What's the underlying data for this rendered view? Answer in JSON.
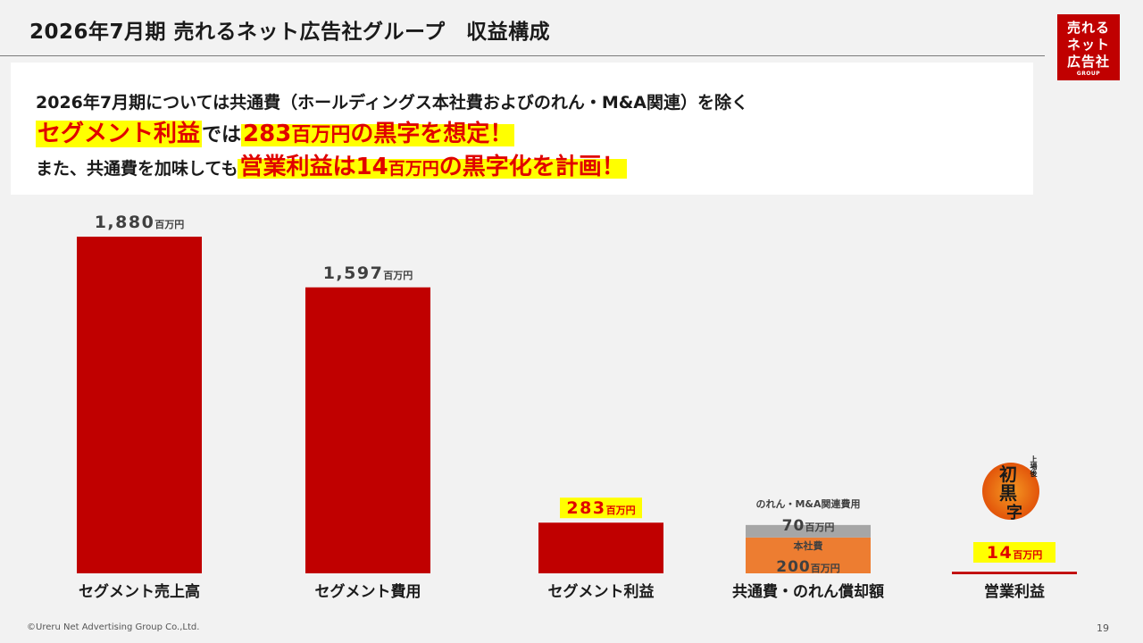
{
  "title": "2026年7月期 売れるネット広告社グループ　収益構成",
  "logo": {
    "line1": "売れる",
    "line2": "ネット",
    "line3": "広告社",
    "line4": "GROUP"
  },
  "summary": {
    "line1": "2026年7月期については共通費（ホールディングス本社費およびのれん・M&A関連）を除く",
    "line2_hl1": "セグメント利益",
    "line2_mid": "では",
    "line2_hl2_num": "283",
    "line2_hl2_unit": "百万円",
    "line2_hl2_rest": "の黒字を想定！",
    "line3_pre": "また、共通費を加味しても",
    "line3_hl_a": "営業利益は",
    "line3_hl_num": "14",
    "line3_hl_unit": "百万円",
    "line3_hl_rest": "の黒字化を計画！"
  },
  "badge": {
    "small": "上場後",
    "big1": "初",
    "big2": "黒",
    "big3": "字"
  },
  "colors": {
    "bar": "#c00000",
    "accent_red": "#e00000",
    "highlight": "#ffff00",
    "stack_top": "#a6a6a6",
    "stack_bottom": "#ed7d31",
    "line": "#c00000"
  },
  "chart_data": {
    "type": "bar",
    "unit": "百万円",
    "categories": [
      "セグメント売上高",
      "セグメント費用",
      "セグメント利益",
      "共通費・のれん償却額",
      "営業利益"
    ],
    "values": [
      1880,
      1597,
      283,
      270,
      14
    ],
    "stack_components": [
      {
        "name": "本社費",
        "value": 200
      },
      {
        "name": "のれん・M&A関連費用",
        "value": 70
      }
    ],
    "value_labels": [
      {
        "num": "1,880",
        "unit": "百万円"
      },
      {
        "num": "1,597",
        "unit": "百万円"
      },
      {
        "num": "283",
        "unit": "百万円"
      },
      null,
      {
        "num": "14",
        "unit": "百万円"
      }
    ],
    "ylim": [
      0,
      1880
    ]
  },
  "footer": {
    "copyright": "©Ureru Net Advertising Group Co.,Ltd.",
    "page": "19"
  }
}
